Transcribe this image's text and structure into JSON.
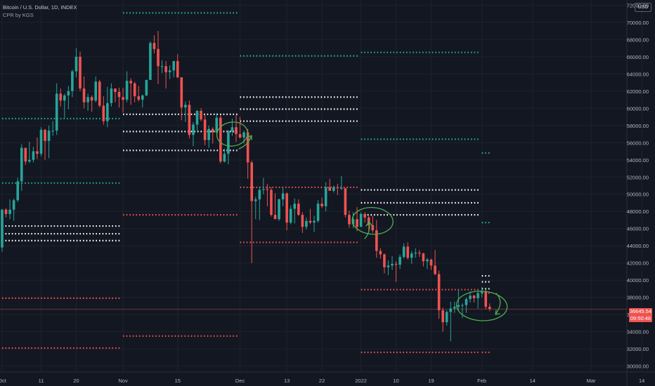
{
  "chart_data": {
    "type": "candlestick",
    "title": "Bitcoin / U.S. Dollar, 1D, INDEX",
    "indicator": "CPR by KGS",
    "currency": "USD",
    "last_price": "36645.54",
    "countdown": "09:50:48",
    "y_axis": {
      "ticks": [
        "72000.00",
        "70000.00",
        "68000.00",
        "66000.00",
        "64000.00",
        "62000.00",
        "60000.00",
        "58000.00",
        "56000.00",
        "54000.00",
        "52000.00",
        "50000.00",
        "48000.00",
        "46000.00",
        "44000.00",
        "42000.00",
        "40000.00",
        "38000.00",
        "36000.00",
        "34000.00",
        "32000.00",
        "30000.00"
      ],
      "range": [
        29400,
        72600
      ]
    },
    "x_axis": {
      "ticks": [
        {
          "label": "Oct",
          "date": "2021-10-01"
        },
        {
          "label": "11",
          "date": "2021-10-11"
        },
        {
          "label": "20",
          "date": "2021-10-20"
        },
        {
          "label": "Nov",
          "date": "2021-11-01"
        },
        {
          "label": "15",
          "date": "2021-11-15"
        },
        {
          "label": "Dec",
          "date": "2021-12-01"
        },
        {
          "label": "13",
          "date": "2021-12-13"
        },
        {
          "label": "22",
          "date": "2021-12-22"
        },
        {
          "label": "2022",
          "date": "2022-01-01"
        },
        {
          "label": "10",
          "date": "2022-01-10"
        },
        {
          "label": "19",
          "date": "2022-01-19"
        },
        {
          "label": "Feb",
          "date": "2022-02-01"
        },
        {
          "label": "14",
          "date": "2022-02-14"
        },
        {
          "label": "Mar",
          "date": "2022-03-01"
        },
        {
          "label": "14",
          "date": "2022-03-14"
        }
      ],
      "range": [
        "2021-10-01",
        "2022-03-14"
      ]
    },
    "candles": [
      [
        "2021-10-01",
        43800,
        48300,
        43300,
        48200
      ],
      [
        "2021-10-02",
        48200,
        48400,
        47300,
        47700
      ],
      [
        "2021-10-03",
        47700,
        49400,
        47100,
        48200
      ],
      [
        "2021-10-04",
        48200,
        49500,
        46900,
        49300
      ],
      [
        "2021-10-05",
        49300,
        51900,
        49100,
        51500
      ],
      [
        "2021-10-06",
        51500,
        55800,
        50400,
        55400
      ],
      [
        "2021-10-07",
        55400,
        55400,
        53400,
        53800
      ],
      [
        "2021-10-08",
        53800,
        56100,
        53600,
        54000
      ],
      [
        "2021-10-09",
        54000,
        55500,
        53700,
        55000
      ],
      [
        "2021-10-10",
        55000,
        56600,
        54100,
        54700
      ],
      [
        "2021-10-11",
        54700,
        57800,
        54400,
        57500
      ],
      [
        "2021-10-12",
        57500,
        57600,
        54000,
        56200
      ],
      [
        "2021-10-13",
        56200,
        58000,
        54200,
        57400
      ],
      [
        "2021-10-14",
        57400,
        58500,
        56800,
        57400
      ],
      [
        "2021-10-15",
        57400,
        62900,
        56900,
        61700
      ],
      [
        "2021-10-16",
        61700,
        62300,
        60200,
        60900
      ],
      [
        "2021-10-17",
        60900,
        61700,
        58900,
        61500
      ],
      [
        "2021-10-18",
        61500,
        62600,
        59900,
        62000
      ],
      [
        "2021-10-19",
        62000,
        64500,
        61300,
        64300
      ],
      [
        "2021-10-20",
        64300,
        67000,
        63600,
        66000
      ],
      [
        "2021-10-21",
        66000,
        66600,
        62000,
        62300
      ],
      [
        "2021-10-22",
        62300,
        63700,
        60000,
        60700
      ],
      [
        "2021-10-23",
        60700,
        61700,
        59700,
        61300
      ],
      [
        "2021-10-24",
        61300,
        61500,
        59600,
        60900
      ],
      [
        "2021-10-25",
        60900,
        63700,
        60700,
        63100
      ],
      [
        "2021-10-26",
        63100,
        63300,
        60100,
        60300
      ],
      [
        "2021-10-27",
        60300,
        61400,
        58100,
        58500
      ],
      [
        "2021-10-28",
        58500,
        62500,
        57800,
        60600
      ],
      [
        "2021-10-29",
        60600,
        62900,
        60200,
        62300
      ],
      [
        "2021-10-30",
        62300,
        62300,
        60700,
        61900
      ],
      [
        "2021-10-31",
        61900,
        62400,
        60100,
        61300
      ],
      [
        "2021-11-01",
        61300,
        62400,
        59500,
        61000
      ],
      [
        "2021-11-02",
        61000,
        64300,
        60700,
        63200
      ],
      [
        "2021-11-03",
        63200,
        63500,
        60400,
        62900
      ],
      [
        "2021-11-04",
        62900,
        63100,
        60700,
        61400
      ],
      [
        "2021-11-05",
        61400,
        62600,
        60800,
        61000
      ],
      [
        "2021-11-06",
        61000,
        61600,
        60100,
        61500
      ],
      [
        "2021-11-07",
        61500,
        63300,
        61400,
        63300
      ],
      [
        "2021-11-08",
        63300,
        67800,
        63300,
        67600
      ],
      [
        "2021-11-09",
        67600,
        68500,
        66400,
        66900
      ],
      [
        "2021-11-10",
        66900,
        69000,
        62800,
        64900
      ],
      [
        "2021-11-11",
        64900,
        65600,
        64100,
        64900
      ],
      [
        "2021-11-12",
        64900,
        65500,
        62300,
        64200
      ],
      [
        "2021-11-13",
        64200,
        65000,
        63400,
        64400
      ],
      [
        "2021-11-14",
        64400,
        65400,
        63600,
        65500
      ],
      [
        "2021-11-15",
        65500,
        66300,
        63500,
        63600
      ],
      [
        "2021-11-16",
        63600,
        63600,
        58600,
        60100
      ],
      [
        "2021-11-17",
        60100,
        60800,
        58400,
        60400
      ],
      [
        "2021-11-18",
        60400,
        60900,
        56500,
        56900
      ],
      [
        "2021-11-19",
        56900,
        58400,
        55600,
        58100
      ],
      [
        "2021-11-20",
        58100,
        59800,
        57400,
        59700
      ],
      [
        "2021-11-21",
        59700,
        60000,
        58500,
        58700
      ],
      [
        "2021-11-22",
        58700,
        59300,
        55700,
        56300
      ],
      [
        "2021-11-23",
        56300,
        58000,
        55400,
        57600
      ],
      [
        "2021-11-24",
        57600,
        57800,
        55900,
        57200
      ],
      [
        "2021-11-25",
        57200,
        59400,
        57000,
        58900
      ],
      [
        "2021-11-26",
        58900,
        59200,
        53600,
        53800
      ],
      [
        "2021-11-27",
        53800,
        55300,
        53700,
        54700
      ],
      [
        "2021-11-28",
        54700,
        57500,
        53500,
        57300
      ],
      [
        "2021-11-29",
        57300,
        58800,
        56800,
        57800
      ],
      [
        "2021-11-30",
        57800,
        59200,
        56100,
        57000
      ],
      [
        "2021-12-01",
        57000,
        59000,
        56500,
        56600
      ],
      [
        "2021-12-02",
        56600,
        57400,
        55900,
        57200
      ],
      [
        "2021-12-03",
        57200,
        57600,
        51800,
        53700
      ],
      [
        "2021-12-04",
        53700,
        53900,
        42000,
        49200
      ],
      [
        "2021-12-05",
        49200,
        49700,
        47100,
        49400
      ],
      [
        "2021-12-06",
        49400,
        50900,
        47000,
        50500
      ],
      [
        "2021-12-07",
        50500,
        51900,
        50000,
        50600
      ],
      [
        "2021-12-08",
        50600,
        51200,
        48600,
        50500
      ],
      [
        "2021-12-09",
        50500,
        50800,
        47400,
        47600
      ],
      [
        "2021-12-10",
        47600,
        50100,
        47300,
        47100
      ],
      [
        "2021-12-11",
        47100,
        49500,
        46900,
        49400
      ],
      [
        "2021-12-12",
        49400,
        50800,
        48600,
        50100
      ],
      [
        "2021-12-13",
        50100,
        50200,
        45800,
        46700
      ],
      [
        "2021-12-14",
        46700,
        48700,
        46500,
        48300
      ],
      [
        "2021-12-15",
        48300,
        49500,
        46600,
        48900
      ],
      [
        "2021-12-16",
        48900,
        49400,
        47500,
        47600
      ],
      [
        "2021-12-17",
        47600,
        47900,
        45500,
        46200
      ],
      [
        "2021-12-18",
        46200,
        47300,
        45900,
        46900
      ],
      [
        "2021-12-19",
        46900,
        48300,
        46500,
        46700
      ],
      [
        "2021-12-20",
        46700,
        47500,
        45600,
        46900
      ],
      [
        "2021-12-21",
        46900,
        49300,
        46700,
        48900
      ],
      [
        "2021-12-22",
        48900,
        49600,
        48400,
        48600
      ],
      [
        "2021-12-23",
        48600,
        51400,
        48000,
        50800
      ],
      [
        "2021-12-24",
        50800,
        51800,
        50500,
        50400
      ],
      [
        "2021-12-25",
        50400,
        51000,
        50200,
        50800
      ],
      [
        "2021-12-26",
        50800,
        51200,
        49900,
        50700
      ],
      [
        "2021-12-27",
        50700,
        52100,
        50500,
        50700
      ],
      [
        "2021-12-28",
        50700,
        50700,
        47300,
        47600
      ],
      [
        "2021-12-29",
        47600,
        48100,
        46100,
        46500
      ],
      [
        "2021-12-30",
        46500,
        47900,
        46100,
        47100
      ],
      [
        "2021-12-31",
        47100,
        48500,
        45700,
        46200
      ],
      [
        "2022-01-01",
        46200,
        47900,
        46200,
        47700
      ],
      [
        "2022-01-02",
        47700,
        47900,
        46700,
        47300
      ],
      [
        "2022-01-03",
        47300,
        47500,
        45700,
        46400
      ],
      [
        "2022-01-04",
        46400,
        47500,
        45500,
        45800
      ],
      [
        "2022-01-05",
        45800,
        47000,
        42600,
        43400
      ],
      [
        "2022-01-06",
        43400,
        43700,
        42500,
        43000
      ],
      [
        "2022-01-07",
        43000,
        43100,
        40800,
        41500
      ],
      [
        "2022-01-08",
        41500,
        42300,
        40600,
        41700
      ],
      [
        "2022-01-09",
        41700,
        42800,
        41200,
        41900
      ],
      [
        "2022-01-10",
        41900,
        42200,
        39800,
        41800
      ],
      [
        "2022-01-11",
        41800,
        43000,
        41300,
        42700
      ],
      [
        "2022-01-12",
        42700,
        44300,
        42500,
        43900
      ],
      [
        "2022-01-13",
        43900,
        44400,
        42400,
        42600
      ],
      [
        "2022-01-14",
        42600,
        43400,
        41900,
        43100
      ],
      [
        "2022-01-15",
        43100,
        43700,
        42600,
        43200
      ],
      [
        "2022-01-16",
        43200,
        43500,
        42700,
        43100
      ],
      [
        "2022-01-17",
        43100,
        43200,
        41600,
        42200
      ],
      [
        "2022-01-18",
        42200,
        42600,
        41300,
        42400
      ],
      [
        "2022-01-19",
        42400,
        42500,
        41200,
        41700
      ],
      [
        "2022-01-20",
        41700,
        43500,
        40600,
        40700
      ],
      [
        "2022-01-21",
        40700,
        41100,
        35500,
        36500
      ],
      [
        "2022-01-22",
        36500,
        36800,
        34000,
        35100
      ],
      [
        "2022-01-23",
        35100,
        36500,
        34700,
        36300
      ],
      [
        "2022-01-24",
        36300,
        37500,
        32900,
        36700
      ],
      [
        "2022-01-25",
        36700,
        37500,
        36200,
        36900
      ],
      [
        "2022-01-26",
        36900,
        38900,
        36400,
        37100
      ],
      [
        "2022-01-27",
        37100,
        37300,
        35600,
        37100
      ],
      [
        "2022-01-28",
        37100,
        38000,
        36200,
        37800
      ],
      [
        "2022-01-29",
        37800,
        38700,
        37400,
        38200
      ],
      [
        "2022-01-30",
        38200,
        38300,
        37400,
        37900
      ],
      [
        "2022-01-31",
        37900,
        38700,
        36700,
        38500
      ],
      [
        "2022-02-01",
        38500,
        39200,
        38000,
        38700
      ],
      [
        "2022-02-02",
        38700,
        38900,
        36600,
        36900
      ],
      [
        "2022-02-03",
        36900,
        37300,
        36400,
        36645.54
      ]
    ],
    "levels": [
      {
        "color": "#22ab94",
        "value": 71100,
        "start": "2021-11-01",
        "end": "2021-11-30"
      },
      {
        "color": "#22ab94",
        "value": 58800,
        "start": "2021-10-01",
        "end": "2021-10-31"
      },
      {
        "color": "#22ab94",
        "value": 51300,
        "start": "2021-10-01",
        "end": "2021-10-31"
      },
      {
        "color": "#ffffff",
        "value": 46300,
        "start": "2021-10-01",
        "end": "2021-10-31"
      },
      {
        "color": "#ffffff",
        "value": 45400,
        "start": "2021-10-01",
        "end": "2021-10-31"
      },
      {
        "color": "#ffffff",
        "value": 44600,
        "start": "2021-10-01",
        "end": "2021-10-31"
      },
      {
        "color": "#ef5350",
        "value": 37900,
        "start": "2021-10-01",
        "end": "2021-10-31"
      },
      {
        "color": "#ef5350",
        "value": 32100,
        "start": "2021-10-01",
        "end": "2021-10-31"
      },
      {
        "color": "#ffffff",
        "value": 59300,
        "start": "2021-11-01",
        "end": "2021-11-30"
      },
      {
        "color": "#ffffff",
        "value": 57300,
        "start": "2021-11-01",
        "end": "2021-11-30"
      },
      {
        "color": "#ffffff",
        "value": 55100,
        "start": "2021-11-01",
        "end": "2021-11-30"
      },
      {
        "color": "#ef5350",
        "value": 47600,
        "start": "2021-11-01",
        "end": "2021-11-30"
      },
      {
        "color": "#ef5350",
        "value": 33500,
        "start": "2021-11-01",
        "end": "2021-11-30"
      },
      {
        "color": "#22ab94",
        "value": 66100,
        "start": "2021-12-01",
        "end": "2021-12-31"
      },
      {
        "color": "#ffffff",
        "value": 61300,
        "start": "2021-12-01",
        "end": "2021-12-31"
      },
      {
        "color": "#ffffff",
        "value": 59900,
        "start": "2021-12-01",
        "end": "2021-12-31"
      },
      {
        "color": "#ffffff",
        "value": 58500,
        "start": "2021-12-01",
        "end": "2021-12-31"
      },
      {
        "color": "#ef5350",
        "value": 50800,
        "start": "2021-12-01",
        "end": "2021-12-31"
      },
      {
        "color": "#ef5350",
        "value": 44400,
        "start": "2021-12-01",
        "end": "2021-12-31"
      },
      {
        "color": "#22ab94",
        "value": 66500,
        "start": "2022-01-01",
        "end": "2022-01-31"
      },
      {
        "color": "#22ab94",
        "value": 56400,
        "start": "2022-01-01",
        "end": "2022-01-31"
      },
      {
        "color": "#ffffff",
        "value": 50500,
        "start": "2022-01-01",
        "end": "2022-01-31"
      },
      {
        "color": "#ffffff",
        "value": 49000,
        "start": "2022-01-01",
        "end": "2022-01-31"
      },
      {
        "color": "#ffffff",
        "value": 47600,
        "start": "2022-01-01",
        "end": "2022-01-31"
      },
      {
        "color": "#ef5350",
        "value": 38900,
        "start": "2022-01-01",
        "end": "2022-01-31"
      },
      {
        "color": "#ef5350",
        "value": 31600,
        "start": "2022-01-01",
        "end": "2022-01-31"
      },
      {
        "color": "#22ab94",
        "value": 54800,
        "start": "2022-02-01",
        "end": "2022-02-03"
      },
      {
        "color": "#22ab94",
        "value": 46700,
        "start": "2022-02-01",
        "end": "2022-02-03"
      },
      {
        "color": "#ffffff",
        "value": 40500,
        "start": "2022-02-01",
        "end": "2022-02-03"
      },
      {
        "color": "#ffffff",
        "value": 39800,
        "start": "2022-02-01",
        "end": "2022-02-03"
      },
      {
        "color": "#ffffff",
        "value": 39000,
        "start": "2022-02-01",
        "end": "2022-02-03"
      },
      {
        "color": "#ef5350",
        "value": 38500,
        "start": "2022-02-01",
        "end": "2022-02-03"
      },
      {
        "color": "#ef5350",
        "value": 31600,
        "start": "2022-02-01",
        "end": "2022-02-03"
      }
    ],
    "colors": {
      "up": "#26a69a",
      "down": "#ef5350",
      "background": "#131722",
      "grid": "#1e222d",
      "annotation": "#4caf50"
    },
    "grid": true
  }
}
